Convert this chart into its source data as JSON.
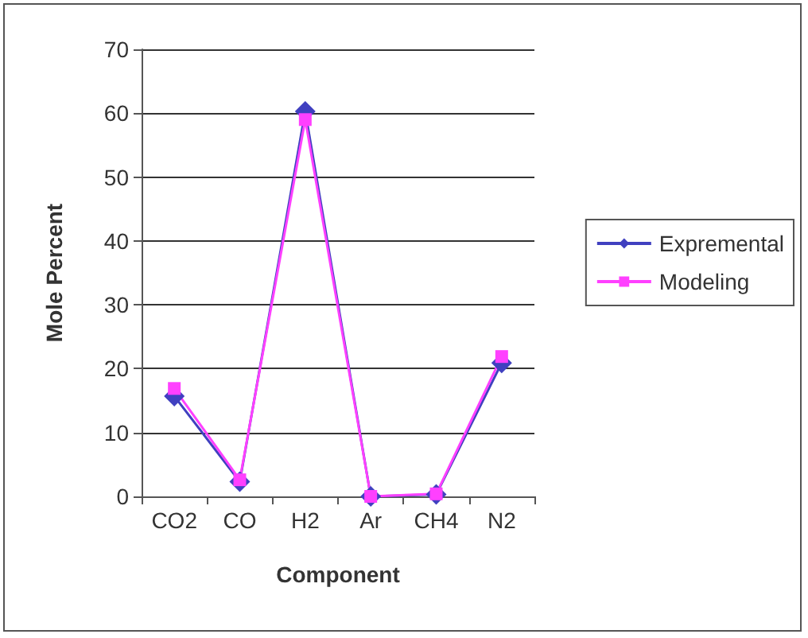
{
  "chart_data": {
    "type": "line",
    "xlabel": "Component",
    "ylabel": "Mole Percent",
    "categories": [
      "CO2",
      "CO",
      "H2",
      "Ar",
      "CH4",
      "N2"
    ],
    "series": [
      {
        "name": "Expremental",
        "color": "#4040c0",
        "marker": "diamond",
        "values": [
          15.7,
          2.3,
          60.3,
          0,
          0.3,
          20.9
        ]
      },
      {
        "name": "Modeling",
        "color": "#ff40ff",
        "marker": "square",
        "values": [
          16.9,
          2.6,
          59,
          0,
          0.4,
          21.9
        ]
      }
    ],
    "ylim": [
      0,
      70
    ],
    "yticks": [
      0,
      10,
      20,
      30,
      40,
      50,
      60,
      70
    ],
    "grid": "y",
    "legend": "right",
    "line_style": "solid"
  }
}
